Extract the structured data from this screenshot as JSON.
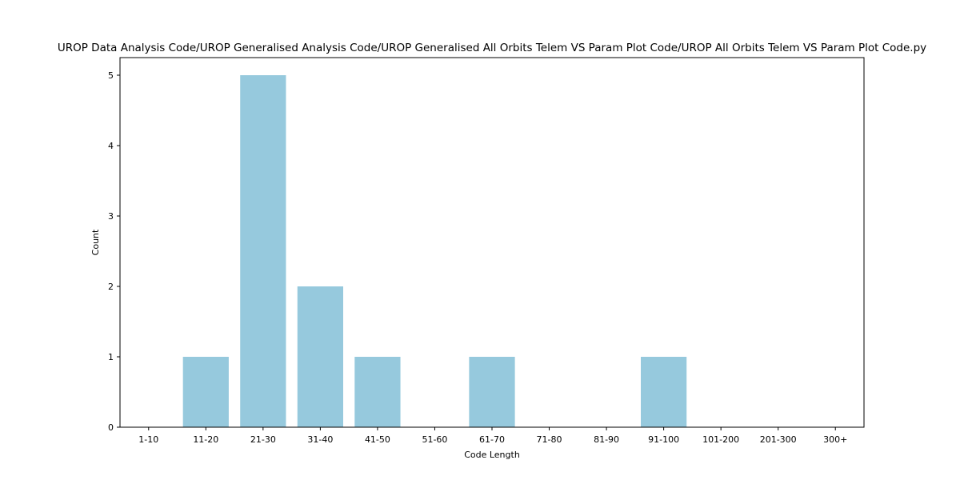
{
  "chart_data": {
    "type": "bar",
    "title": "UROP Data Analysis Code/UROP Generalised Analysis Code/UROP Generalised All Orbits Telem VS Param Plot Code/UROP All Orbits Telem VS Param Plot Code.py",
    "xlabel": "Code Length",
    "ylabel": "Count",
    "categories": [
      "1-10",
      "11-20",
      "21-30",
      "31-40",
      "41-50",
      "51-60",
      "61-70",
      "71-80",
      "81-90",
      "91-100",
      "101-200",
      "201-300",
      "300+"
    ],
    "values": [
      0,
      1,
      5,
      2,
      1,
      0,
      1,
      0,
      0,
      1,
      0,
      0,
      0
    ],
    "yticks": [
      0,
      1,
      2,
      3,
      4,
      5
    ],
    "ylim": [
      0,
      5.25
    ],
    "bar_color": "#96c9dd",
    "grid": false,
    "legend": "none"
  }
}
